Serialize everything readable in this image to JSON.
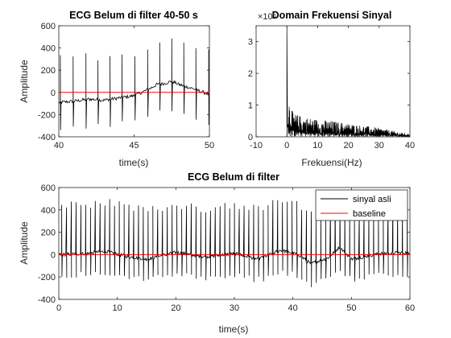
{
  "chart_data": [
    {
      "type": "line",
      "title": "ECG Belum di filter 40-50 s",
      "xlabel": "time(s)",
      "ylabel": "Amplitude",
      "xlim": [
        40,
        50
      ],
      "ylim": [
        -400,
        600
      ],
      "xticks": [
        "40",
        "45",
        "50"
      ],
      "yticks": [
        "-400",
        "-200",
        "0",
        "200",
        "400",
        "600"
      ],
      "grid": false,
      "series": [
        {
          "color": "#000000",
          "r_peak_times": [
            40.1,
            40.95,
            41.8,
            42.6,
            43.4,
            44.2,
            45.05,
            45.9,
            46.7,
            47.5,
            48.3,
            49.1,
            49.95
          ],
          "r_peak_amp": 400,
          "s_trough_amp": -250,
          "baseline_trend_t": [
            40,
            41,
            42,
            43,
            44,
            45,
            45.5,
            46,
            46.5,
            47,
            47.5,
            48,
            49,
            50
          ],
          "baseline_trend_v": [
            -90,
            -80,
            -60,
            -70,
            -50,
            -30,
            0,
            30,
            70,
            80,
            100,
            70,
            30,
            -20
          ]
        },
        {
          "color": "#ff0000",
          "constant": 0
        }
      ]
    },
    {
      "type": "line",
      "title": "Domain Frekuensi Sinyal",
      "exponent_label": "×10⁵",
      "xlabel": "Frekuensi(Hz)",
      "ylabel": "",
      "xlim": [
        -10,
        40
      ],
      "ylim": [
        0,
        3.5
      ],
      "xticks": [
        "-10",
        "0",
        "10",
        "20",
        "30",
        "40"
      ],
      "yticks": [
        "0",
        "1",
        "2",
        "3"
      ],
      "grid": false,
      "series": [
        {
          "color": "#000000",
          "dc_peak_freq": 0,
          "dc_peak": 3.5,
          "spectrum_envelope_f": [
            0.5,
            2,
            5,
            10,
            15,
            20,
            25,
            30,
            35,
            40
          ],
          "spectrum_envelope_v": [
            1.3,
            0.75,
            0.65,
            0.55,
            0.5,
            0.42,
            0.35,
            0.28,
            0.18,
            0.08
          ]
        }
      ]
    },
    {
      "type": "line",
      "title": "ECG Belum di filter",
      "xlabel": "time(s)",
      "ylabel": "Amplitude",
      "xlim": [
        0,
        60
      ],
      "ylim": [
        -400,
        600
      ],
      "xticks": [
        "0",
        "10",
        "20",
        "30",
        "40",
        "50",
        "60"
      ],
      "yticks": [
        "-400",
        "-200",
        "0",
        "200",
        "400",
        "600"
      ],
      "grid": false,
      "legend_position": "top-right",
      "series": [
        {
          "name": "sinyal asli",
          "color": "#000000",
          "r_peak_interval": 0.82,
          "r_peak_amp": 450,
          "s_trough_amp": -200,
          "baseline_trend_t": [
            0,
            5,
            8,
            12,
            15,
            20,
            25,
            30,
            34,
            38,
            41,
            43,
            46,
            48,
            50,
            55,
            60
          ],
          "baseline_trend_v": [
            0,
            10,
            30,
            -20,
            -40,
            20,
            -20,
            10,
            -40,
            40,
            0,
            -80,
            -30,
            70,
            -40,
            10,
            20
          ]
        },
        {
          "name": "baseline",
          "color": "#ff0000",
          "constant": 0
        }
      ]
    }
  ]
}
